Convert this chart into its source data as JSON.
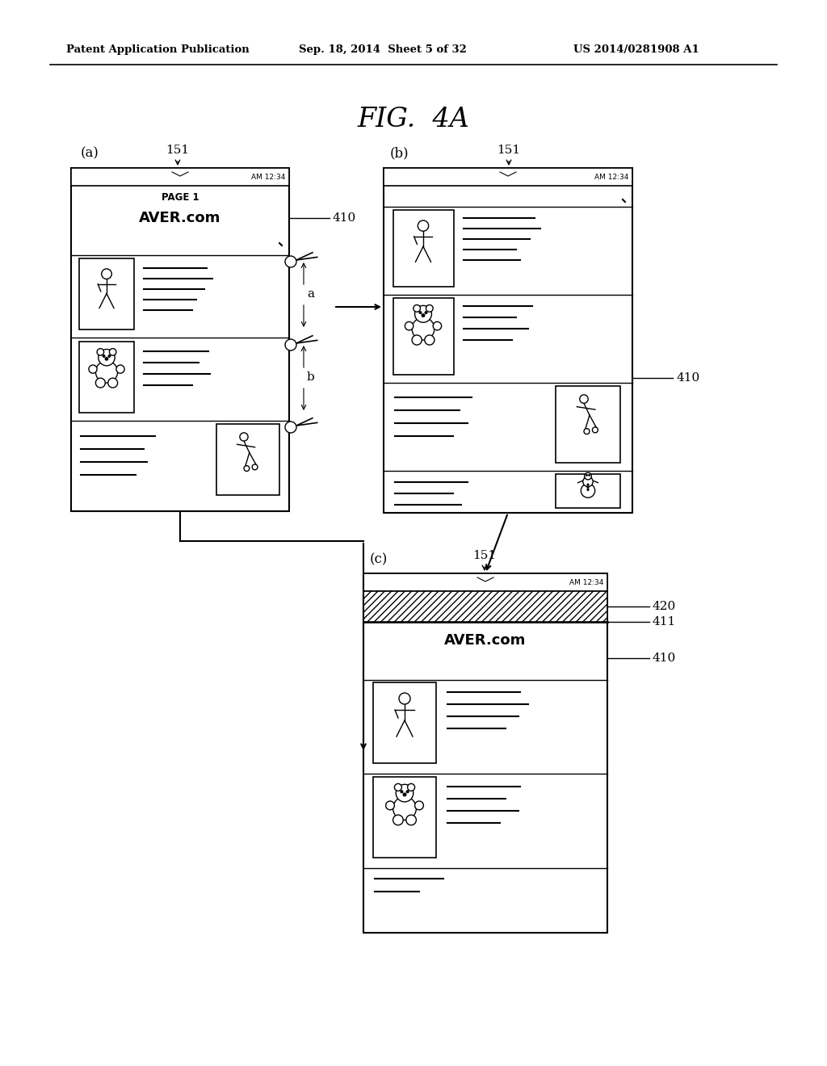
{
  "title": "FIG.  4A",
  "header_left": "Patent Application Publication",
  "header_mid": "Sep. 18, 2014  Sheet 5 of 32",
  "header_right": "US 2014/0281908 A1",
  "bg_color": "#ffffff",
  "line_color": "#000000"
}
